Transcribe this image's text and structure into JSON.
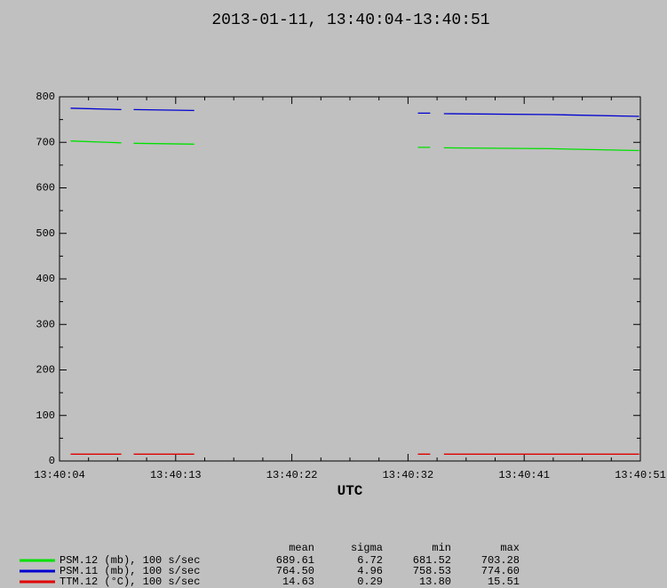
{
  "chart_data": {
    "type": "line",
    "title": "2013-01-11, 13:40:04-13:40:51",
    "x_label": "UTC",
    "xlim": [
      "13:40:04",
      "13:40:51"
    ],
    "xticks": [
      "13:40:04",
      {
        "value": "13:40:13.4",
        "label": "13:40:13"
      },
      {
        "value": "13:40:22.8",
        "label": "13:40:22"
      },
      {
        "value": "13:40:32.2",
        "label": "13:40:32"
      },
      {
        "value": "13:40:41.6",
        "label": "13:40:41"
      },
      "13:40:51"
    ],
    "ylim": [
      0,
      800
    ],
    "yticks": [
      0,
      100,
      200,
      300,
      400,
      500,
      600,
      700,
      800
    ],
    "x": [
      "13:40:04.9",
      "13:40:09.0",
      "13:40:09.5",
      "13:40:10.0",
      "13:40:14.9",
      "13:40:24",
      "13:40:33.0",
      "13:40:34.0",
      "13:40:34.5",
      "13:40:35.1",
      "13:40:43.7",
      "13:40:50.9"
    ],
    "series": [
      {
        "name": "PSM.12 (mb), 100 s/sec",
        "color": "#00e000",
        "values": [
          703,
          699,
          null,
          698,
          696,
          null,
          689,
          689,
          null,
          688,
          686,
          682
        ]
      },
      {
        "name": "PSM.11 (mb), 100 s/sec",
        "color": "#0000d0",
        "values": [
          775,
          772,
          null,
          772,
          770,
          null,
          764,
          764,
          null,
          763,
          761,
          757
        ]
      },
      {
        "name": "TTM.12 (°C), 100 s/sec",
        "color": "#e00000",
        "values": [
          15,
          15,
          null,
          15,
          15,
          null,
          15,
          15,
          null,
          15,
          15,
          15
        ]
      }
    ],
    "stats": {
      "columns": [
        "mean",
        "sigma",
        "min",
        "max"
      ],
      "rows": [
        [
          "689.61",
          "6.72",
          "681.52",
          "703.28"
        ],
        [
          "764.50",
          "4.96",
          "758.53",
          "774.60"
        ],
        [
          "14.63",
          "0.29",
          "13.80",
          "15.51"
        ]
      ]
    }
  }
}
